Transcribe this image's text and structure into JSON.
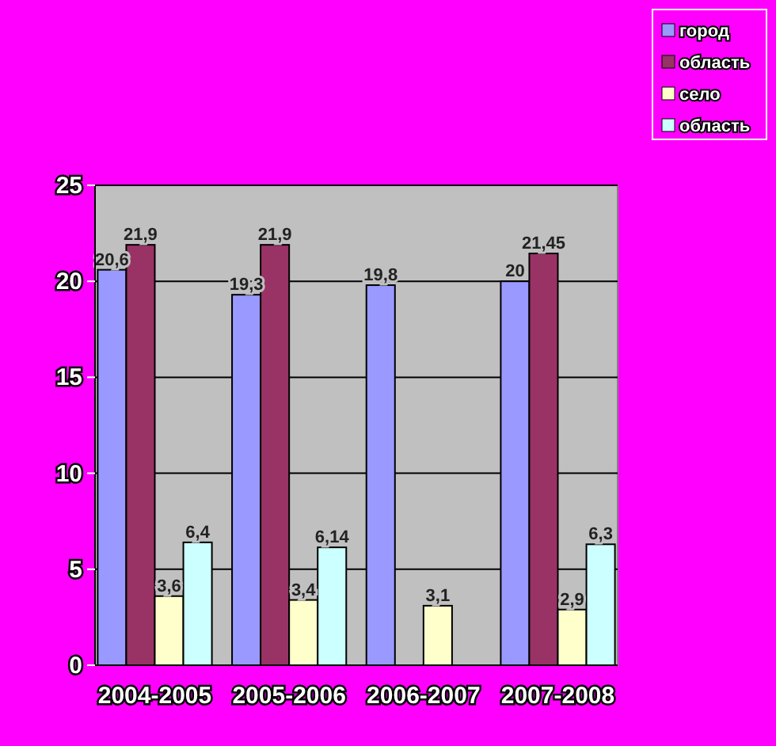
{
  "chart_data": {
    "type": "bar",
    "categories": [
      "2004-2005",
      "2005-2006",
      "2006-2007",
      "2007-2008"
    ],
    "series": [
      {
        "name": "город",
        "color": "#9999ff",
        "values": [
          20.6,
          19.3,
          19.8,
          20
        ],
        "value_labels": [
          "20,6",
          "19,3",
          "19,8",
          "20"
        ]
      },
      {
        "name": "область",
        "color": "#993366",
        "values": [
          21.9,
          21.9,
          null,
          21.45
        ],
        "value_labels": [
          "21,9",
          "21,9",
          null,
          "21,45"
        ]
      },
      {
        "name": "село",
        "color": "#ffffcc",
        "values": [
          3.6,
          3.4,
          3.1,
          2.9
        ],
        "value_labels": [
          "3,6",
          "3,4",
          "3,1",
          "2,9"
        ]
      },
      {
        "name": "область",
        "color": "#ccffff",
        "values": [
          6.4,
          6.14,
          null,
          6.3
        ],
        "value_labels": [
          "6,4",
          "6,14",
          null,
          "6,3"
        ]
      }
    ],
    "ylim": [
      0,
      25
    ],
    "yticks": [
      0,
      5,
      10,
      15,
      20,
      25
    ],
    "grid": "y",
    "legend": "top right"
  }
}
